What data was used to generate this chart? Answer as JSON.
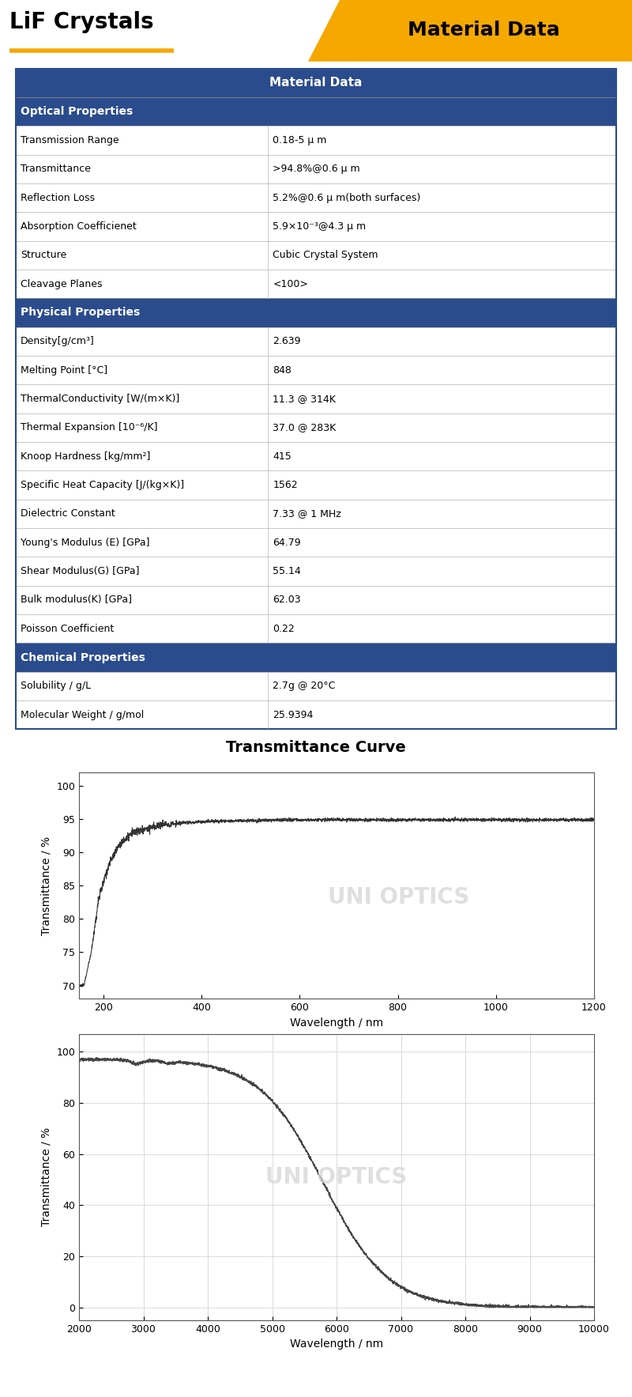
{
  "title": "LiF Crystals",
  "header_right": "Material Data",
  "orange_color": "#F5A800",
  "blue_color": "#2B4C8C",
  "table_header": "Material Data",
  "sections": [
    {
      "name": "Optical Properties",
      "rows": [
        [
          "Transmission Range",
          "0.18-5 μ m"
        ],
        [
          "Transmittance",
          ">94.8%@0.6 μ m"
        ],
        [
          "Reflection Loss",
          "5.2%@0.6 μ m(both surfaces)"
        ],
        [
          "Absorption Coefficienet",
          "5.9×10⁻³@4.3 μ m"
        ],
        [
          "Structure",
          "Cubic Crystal System"
        ],
        [
          "Cleavage Planes",
          "<100>"
        ]
      ]
    },
    {
      "name": "Physical Properties",
      "rows": [
        [
          "Density[g/cm³]",
          "2.639"
        ],
        [
          "Melting Point [°C]",
          "848"
        ],
        [
          "ThermalConductivity [W/(m×K)]",
          "11.3 @ 314K"
        ],
        [
          "Thermal Expansion [10⁻⁶/K]",
          "37.0 @ 283K"
        ],
        [
          "Knoop Hardness [kg/mm²]",
          "415"
        ],
        [
          "Specific Heat Capacity [J/(kg×K)]",
          "1562"
        ],
        [
          "Dielectric Constant",
          "7.33 @ 1 MHz"
        ],
        [
          "Young's Modulus (E) [GPa]",
          "64.79"
        ],
        [
          "Shear Modulus(G) [GPa]",
          "55.14"
        ],
        [
          "Bulk modulus(K) [GPa]",
          "62.03"
        ],
        [
          "Poisson Coefficient",
          "0.22"
        ]
      ]
    },
    {
      "name": "Chemical Properties",
      "rows": [
        [
          "Solubility / g/L",
          "2.7g @ 20°C"
        ],
        [
          "Molecular Weight / g/mol",
          "25.9394"
        ]
      ]
    }
  ],
  "curve1_title": "Transmittance Curve",
  "curve1_xlabel": "Wavelength / nm",
  "curve1_ylabel": "Transmittance / %",
  "curve1_xlim": [
    150,
    1200
  ],
  "curve1_ylim": [
    68,
    102
  ],
  "curve1_xticks": [
    200,
    400,
    600,
    800,
    1000,
    1200
  ],
  "curve1_yticks": [
    70,
    75,
    80,
    85,
    90,
    95,
    100
  ],
  "curve2_xlabel": "Wavelength / nm",
  "curve2_ylabel": "Transmittance / %",
  "curve2_xlim": [
    2000,
    10000
  ],
  "curve2_ylim": [
    -5,
    107
  ],
  "curve2_xticks": [
    2000,
    3000,
    4000,
    5000,
    6000,
    7000,
    8000,
    9000,
    10000
  ],
  "curve2_yticks": [
    0,
    20,
    40,
    60,
    80,
    100
  ]
}
